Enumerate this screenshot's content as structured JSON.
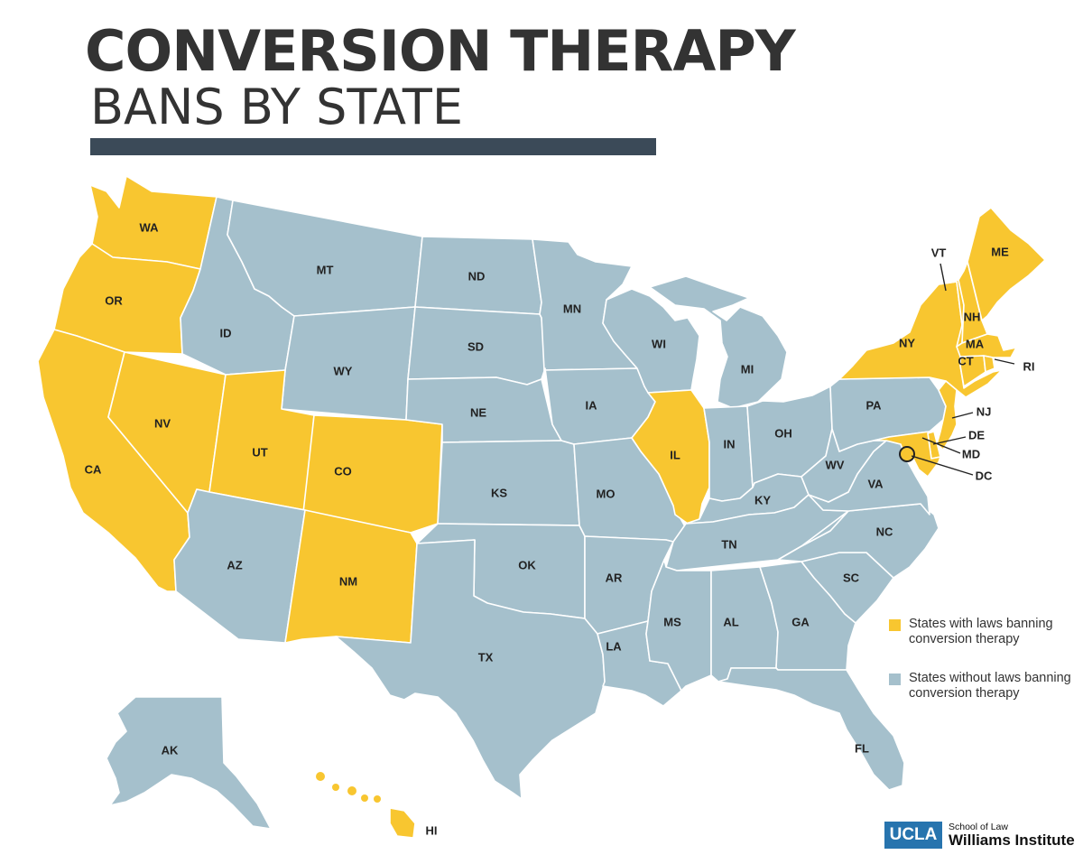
{
  "title": "CONVERSION THERAPY",
  "subtitle": "BANS BY STATE",
  "colors": {
    "ban": "#f8c630",
    "no_ban": "#a5c0cc",
    "rule": "#3b4a58",
    "logo": "#2774ae"
  },
  "legend": [
    {
      "key": "ban",
      "label": "States with laws banning conversion therapy"
    },
    {
      "key": "no_ban",
      "label": "States without laws banning conversion therapy"
    }
  ],
  "states": [
    {
      "abbr": "WA",
      "status": "ban"
    },
    {
      "abbr": "OR",
      "status": "ban"
    },
    {
      "abbr": "CA",
      "status": "ban"
    },
    {
      "abbr": "NV",
      "status": "ban"
    },
    {
      "abbr": "UT",
      "status": "ban"
    },
    {
      "abbr": "CO",
      "status": "ban"
    },
    {
      "abbr": "NM",
      "status": "ban"
    },
    {
      "abbr": "IL",
      "status": "ban"
    },
    {
      "abbr": "NY",
      "status": "ban"
    },
    {
      "abbr": "VT",
      "status": "ban"
    },
    {
      "abbr": "NH",
      "status": "ban"
    },
    {
      "abbr": "ME",
      "status": "ban"
    },
    {
      "abbr": "MA",
      "status": "ban"
    },
    {
      "abbr": "RI",
      "status": "ban"
    },
    {
      "abbr": "CT",
      "status": "ban"
    },
    {
      "abbr": "NJ",
      "status": "ban"
    },
    {
      "abbr": "DE",
      "status": "ban"
    },
    {
      "abbr": "MD",
      "status": "ban"
    },
    {
      "abbr": "DC",
      "status": "ban"
    },
    {
      "abbr": "HI",
      "status": "ban"
    },
    {
      "abbr": "ID",
      "status": "no_ban"
    },
    {
      "abbr": "MT",
      "status": "no_ban"
    },
    {
      "abbr": "WY",
      "status": "no_ban"
    },
    {
      "abbr": "AZ",
      "status": "no_ban"
    },
    {
      "abbr": "ND",
      "status": "no_ban"
    },
    {
      "abbr": "SD",
      "status": "no_ban"
    },
    {
      "abbr": "NE",
      "status": "no_ban"
    },
    {
      "abbr": "KS",
      "status": "no_ban"
    },
    {
      "abbr": "OK",
      "status": "no_ban"
    },
    {
      "abbr": "TX",
      "status": "no_ban"
    },
    {
      "abbr": "MN",
      "status": "no_ban"
    },
    {
      "abbr": "IA",
      "status": "no_ban"
    },
    {
      "abbr": "MO",
      "status": "no_ban"
    },
    {
      "abbr": "AR",
      "status": "no_ban"
    },
    {
      "abbr": "LA",
      "status": "no_ban"
    },
    {
      "abbr": "WI",
      "status": "no_ban"
    },
    {
      "abbr": "MI",
      "status": "no_ban"
    },
    {
      "abbr": "IN",
      "status": "no_ban"
    },
    {
      "abbr": "OH",
      "status": "no_ban"
    },
    {
      "abbr": "KY",
      "status": "no_ban"
    },
    {
      "abbr": "TN",
      "status": "no_ban"
    },
    {
      "abbr": "MS",
      "status": "no_ban"
    },
    {
      "abbr": "AL",
      "status": "no_ban"
    },
    {
      "abbr": "GA",
      "status": "no_ban"
    },
    {
      "abbr": "FL",
      "status": "no_ban"
    },
    {
      "abbr": "SC",
      "status": "no_ban"
    },
    {
      "abbr": "NC",
      "status": "no_ban"
    },
    {
      "abbr": "VA",
      "status": "no_ban"
    },
    {
      "abbr": "WV",
      "status": "no_ban"
    },
    {
      "abbr": "PA",
      "status": "no_ban"
    },
    {
      "abbr": "AK",
      "status": "no_ban"
    }
  ],
  "logo": {
    "mark": "UCLA",
    "line1": "School of Law",
    "line2": "Williams Institute"
  }
}
